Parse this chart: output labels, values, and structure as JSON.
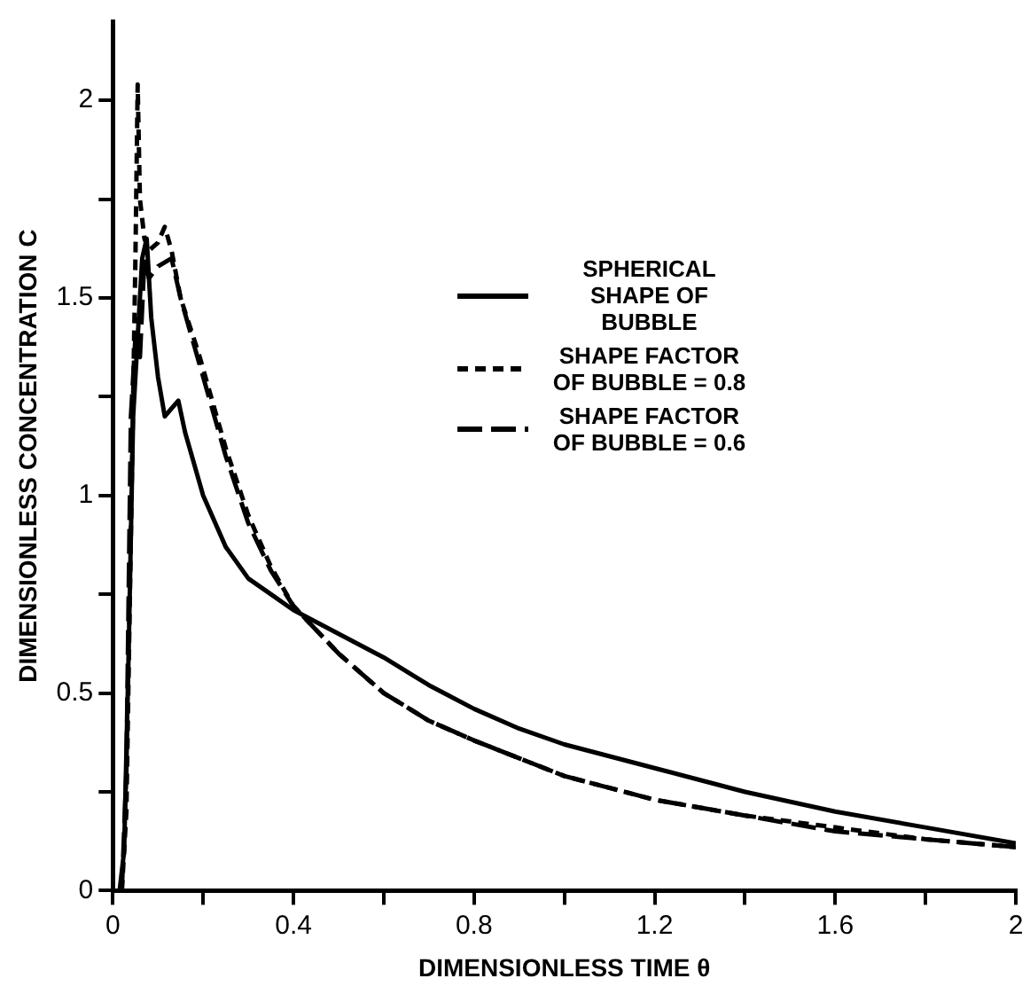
{
  "chart_data": {
    "type": "line",
    "xlabel": "DIMENSIONLESS TIME θ",
    "ylabel": "DIMENSIONLESS CONCENTRATION C",
    "xlim": [
      0,
      2
    ],
    "ylim": [
      0,
      2.2
    ],
    "xticks": [
      0,
      {
        "value": 0.2,
        "label": null
      },
      0.4,
      {
        "value": 0.6,
        "label": null
      },
      0.8,
      {
        "value": 1.0,
        "label": null
      },
      1.2,
      {
        "value": 1.4,
        "label": null
      },
      1.6,
      {
        "value": 1.8,
        "label": null
      },
      2
    ],
    "yticks": [
      0,
      {
        "value": 0.25,
        "label": null
      },
      0.5,
      {
        "value": 0.75,
        "label": null
      },
      1,
      {
        "value": 1.25,
        "label": null
      },
      1.5,
      {
        "value": 1.75,
        "label": null
      },
      2
    ],
    "grid": false,
    "legend": "top right",
    "marker": "none",
    "series": [
      {
        "name": "SPHERICAL SHAPE OF BUBBLE",
        "color": "#000000",
        "line_style": "solid",
        "x": [
          0.015,
          0.025,
          0.035,
          0.045,
          0.055,
          0.065,
          0.075,
          0.085,
          0.1,
          0.115,
          0.13,
          0.145,
          0.16,
          0.2,
          0.25,
          0.3,
          0.35,
          0.4,
          0.5,
          0.6,
          0.7,
          0.8,
          0.9,
          1.0,
          1.2,
          1.4,
          1.6,
          1.8,
          2.0
        ],
        "values": [
          0,
          0.1,
          0.6,
          1.2,
          1.4,
          1.6,
          1.65,
          1.45,
          1.3,
          1.2,
          1.22,
          1.24,
          1.16,
          1.0,
          0.87,
          0.79,
          0.75,
          0.71,
          0.65,
          0.59,
          0.52,
          0.46,
          0.41,
          0.37,
          0.31,
          0.25,
          0.2,
          0.16,
          0.12
        ]
      },
      {
        "name": "SHAPE FACTOR OF BUBBLE = 0.8",
        "color": "#000000",
        "line_style": "dashed",
        "x": [
          0.02,
          0.03,
          0.04,
          0.05,
          0.055,
          0.06,
          0.07,
          0.08,
          0.1,
          0.115,
          0.13,
          0.15,
          0.19,
          0.25,
          0.3,
          0.35,
          0.4,
          0.5,
          0.6,
          0.7,
          0.8,
          1.0,
          1.2,
          1.4,
          1.6,
          1.8,
          2.0
        ],
        "values": [
          0,
          0.2,
          0.9,
          1.6,
          2.04,
          1.75,
          1.65,
          1.62,
          1.64,
          1.68,
          1.62,
          1.5,
          1.36,
          1.12,
          0.95,
          0.82,
          0.72,
          0.6,
          0.5,
          0.43,
          0.38,
          0.29,
          0.23,
          0.19,
          0.16,
          0.13,
          0.11
        ]
      },
      {
        "name": "SHAPE FACTOR OF BUBBLE = 0.6",
        "color": "#000000",
        "line_style": "dashed",
        "x": [
          0.02,
          0.03,
          0.04,
          0.05,
          0.06,
          0.07,
          0.08,
          0.1,
          0.13,
          0.15,
          0.19,
          0.25,
          0.3,
          0.35,
          0.4,
          0.5,
          0.6,
          0.7,
          0.8,
          1.0,
          1.2,
          1.4,
          1.6,
          1.8,
          2.0
        ],
        "values": [
          0,
          0.3,
          1.2,
          1.4,
          1.35,
          1.6,
          1.55,
          1.58,
          1.6,
          1.5,
          1.34,
          1.1,
          0.93,
          0.81,
          0.72,
          0.6,
          0.5,
          0.43,
          0.38,
          0.29,
          0.23,
          0.19,
          0.15,
          0.13,
          0.11
        ]
      }
    ]
  }
}
